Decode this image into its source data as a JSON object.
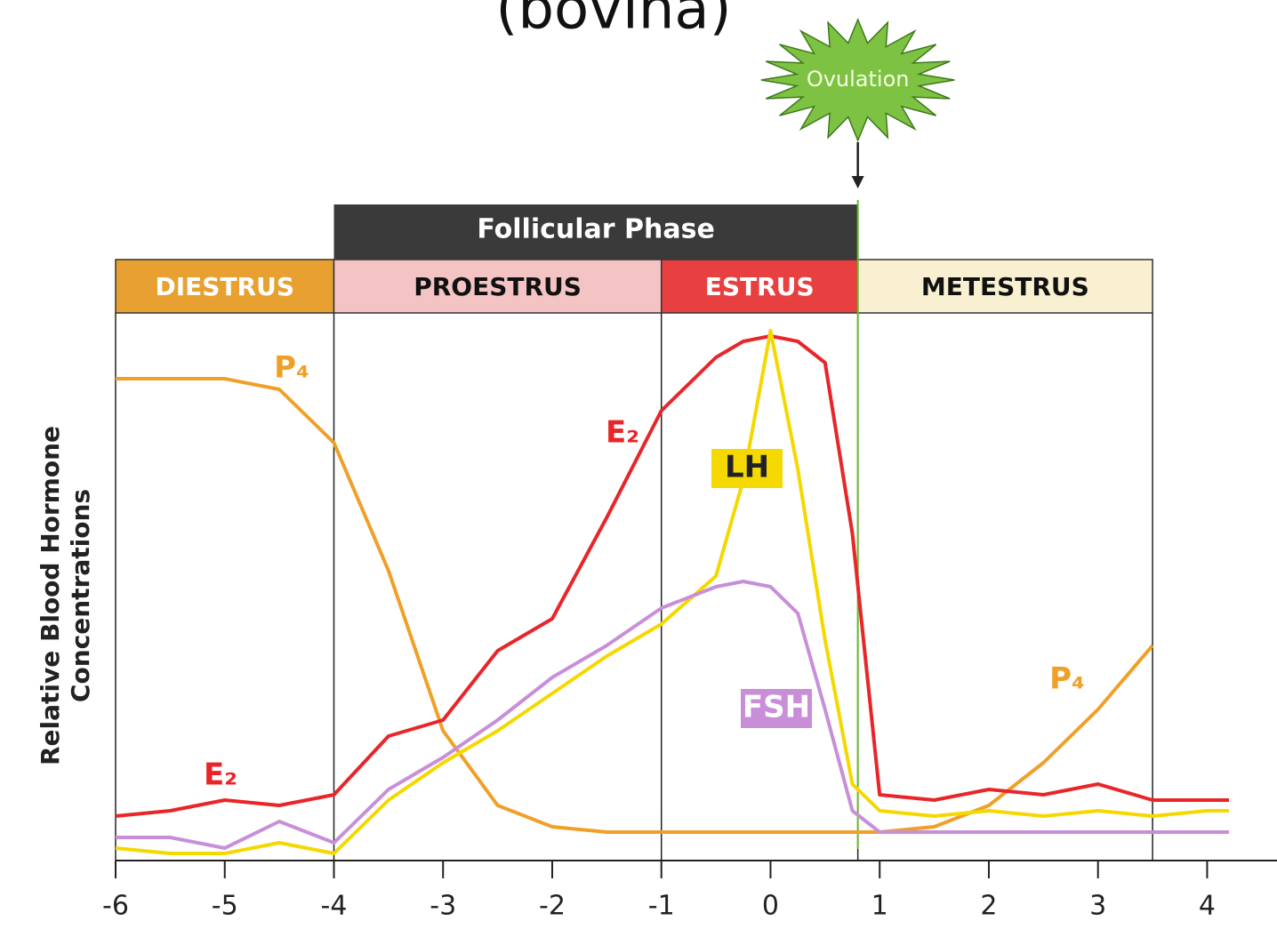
{
  "chart_data": {
    "type": "line",
    "title": "(bovina)",
    "y_label": [
      "Relative Blood Hormone",
      "Concentrations"
    ],
    "x": [
      -6,
      -5.5,
      -5,
      -4.5,
      -4,
      -3.5,
      -3,
      -2.5,
      -2,
      -1.5,
      -1,
      -0.5,
      -0.25,
      0,
      0.25,
      0.5,
      0.75,
      1,
      1.5,
      2,
      2.5,
      3,
      3.5,
      4,
      4.2
    ],
    "series": [
      {
        "name": "P₄",
        "color": "#f0a028",
        "values": [
          89,
          89,
          89,
          87,
          77,
          53,
          23,
          9,
          5,
          4,
          4,
          4,
          4,
          4,
          4,
          4,
          4,
          4,
          5,
          9,
          17,
          27,
          39,
          null,
          null
        ]
      },
      {
        "name": "E₂",
        "color": "#e8262a",
        "values": [
          7,
          8,
          10,
          9,
          11,
          22,
          25,
          38,
          44,
          63,
          83,
          93,
          96,
          97,
          96,
          92,
          60,
          11,
          10,
          12,
          11,
          13,
          10,
          10,
          10
        ]
      },
      {
        "name": "LH",
        "color": "#f5d800",
        "values": [
          1,
          0,
          0,
          2,
          0,
          10,
          17,
          23,
          30,
          37,
          43,
          52,
          70,
          98,
          72,
          40,
          13,
          8,
          7,
          8,
          7,
          8,
          7,
          8,
          8
        ]
      },
      {
        "name": "FSH",
        "color": "#c88fd8",
        "values": [
          3,
          3,
          1,
          6,
          2,
          12,
          18,
          25,
          33,
          39,
          46,
          50,
          51,
          50,
          45,
          27,
          8,
          4,
          4,
          4,
          4,
          4,
          4,
          4,
          4
        ]
      }
    ],
    "xlim": [
      -6,
      4.2
    ],
    "ylim": [
      0,
      100
    ],
    "xticks": [
      -6,
      -5,
      -4,
      -3,
      -2,
      -1,
      0,
      1,
      2,
      3,
      4
    ],
    "phases": [
      {
        "name": "DIESTRUS",
        "start": -6,
        "end": -4,
        "color": "#e8a030"
      },
      {
        "name": "PROESTRUS",
        "start": -4,
        "end": -1,
        "color": "#f4c4c4"
      },
      {
        "name": "ESTRUS",
        "start": -1,
        "end": 0.8,
        "color": "#e84040"
      },
      {
        "name": "METESTRUS",
        "start": 0.8,
        "end": 3.5,
        "color": "#f8f0d0"
      }
    ],
    "follicular_phase": {
      "name": "Follicular Phase",
      "start": -4,
      "end": 0.8
    },
    "ovulation": {
      "name": "Ovulation",
      "x": 0.8
    }
  }
}
